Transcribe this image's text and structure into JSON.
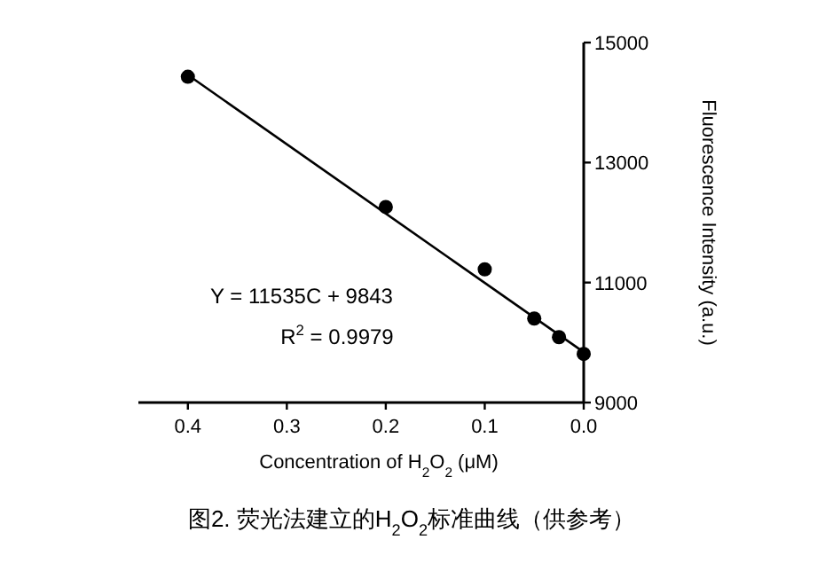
{
  "chart_data": {
    "type": "scatter",
    "xlabel": "Concentration of H$_{2}$O$_{2}$ (μM)",
    "ylabel": "Fluorescence Intensity (a.u.)",
    "annotations": [
      "Y = 11535C + 9843",
      "R$^{2}$ = 0.9979",
      "图2. 荧光法建立的H$_{2}$O$_{2}$标准曲线（供参考）"
    ],
    "series": [
      {
        "color": "#000000",
        "marker": "circle",
        "x": [
          0.4,
          0.2,
          0.1,
          0.05,
          0.025,
          0
        ],
        "values": [
          14430,
          12260,
          11220,
          10400,
          10090,
          9810
        ]
      },
      {
        "type": "line",
        "color": "#000000",
        "x": [
          0,
          0.4
        ],
        "values": [
          9840,
          14460
        ]
      }
    ],
    "xlim": [
      0.45,
      0
    ],
    "ylim": [
      9000,
      15000
    ],
    "xticks": [
      {
        "value": 0,
        "label": "0.0"
      },
      0.1,
      0.2,
      0.3,
      0.4
    ],
    "yticks": [
      9000,
      11000,
      13000,
      15000
    ],
    "grid": false
  }
}
